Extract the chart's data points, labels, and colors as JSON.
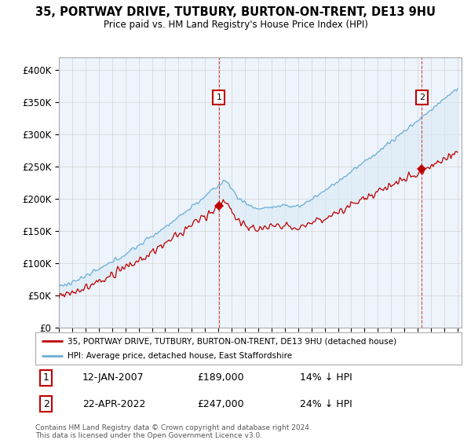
{
  "title_line1": "35, PORTWAY DRIVE, TUTBURY, BURTON-ON-TRENT, DE13 9HU",
  "title_line2": "Price paid vs. HM Land Registry's House Price Index (HPI)",
  "ylim": [
    0,
    420000
  ],
  "yticks": [
    0,
    50000,
    100000,
    150000,
    200000,
    250000,
    300000,
    350000,
    400000
  ],
  "ytick_labels": [
    "£0",
    "£50K",
    "£100K",
    "£150K",
    "£200K",
    "£250K",
    "£300K",
    "£350K",
    "£400K"
  ],
  "hpi_color": "#6baed6",
  "hpi_fill_color": "#d9eaf7",
  "price_color": "#c00000",
  "marker_color": "#c00000",
  "background_color": "#ffffff",
  "grid_color": "#cccccc",
  "legend_line1": "35, PORTWAY DRIVE, TUTBURY, BURTON-ON-TRENT, DE13 9HU (detached house)",
  "legend_line2": "HPI: Average price, detached house, East Staffordshire",
  "point1_date": "12-JAN-2007",
  "point1_price": "£189,000",
  "point1_hpi": "14% ↓ HPI",
  "point1_year": 2007.04,
  "point1_value": 189000,
  "point2_date": "22-APR-2022",
  "point2_price": "£247,000",
  "point2_hpi": "24% ↓ HPI",
  "point2_year": 2022.31,
  "point2_value": 247000,
  "footer": "Contains HM Land Registry data © Crown copyright and database right 2024.\nThis data is licensed under the Open Government Licence v3.0.",
  "xstart_year": 1995,
  "xend_year": 2025
}
